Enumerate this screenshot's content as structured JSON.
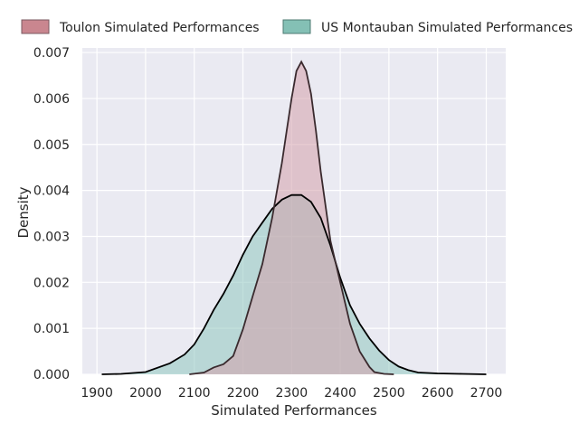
{
  "chart_data": {
    "type": "area",
    "subtype": "kde-density",
    "xlabel": "Simulated Performances",
    "ylabel": "Density",
    "xlim": [
      1870,
      2740
    ],
    "ylim": [
      0,
      0.0071
    ],
    "xticks": [
      1900,
      2000,
      2100,
      2200,
      2300,
      2400,
      2500,
      2600,
      2700
    ],
    "yticks": [
      0,
      0.001,
      0.002,
      0.003,
      0.004,
      0.005,
      0.006,
      0.007
    ],
    "ytick_labels": [
      "0.000",
      "0.001",
      "0.002",
      "0.003",
      "0.004",
      "0.005",
      "0.006",
      "0.007"
    ],
    "grid": true,
    "legend_position": "top",
    "series": [
      {
        "name": "Toulon Simulated Performances",
        "fill": "#d4a0ac",
        "legend_fill": "#c9868f",
        "x": [
          2090,
          2120,
          2140,
          2160,
          2180,
          2200,
          2220,
          2240,
          2260,
          2280,
          2290,
          2300,
          2310,
          2320,
          2330,
          2340,
          2350,
          2360,
          2380,
          2400,
          2420,
          2440,
          2460,
          2470,
          2490,
          2510
        ],
        "y": [
          0,
          4e-05,
          0.00015,
          0.00022,
          0.0004,
          0.00098,
          0.0017,
          0.0024,
          0.0034,
          0.0046,
          0.0053,
          0.006,
          0.0066,
          0.0068,
          0.0066,
          0.0061,
          0.0053,
          0.0044,
          0.0029,
          0.002,
          0.0011,
          0.0005,
          0.00016,
          5e-05,
          1e-05,
          0
        ]
      },
      {
        "name": "US Montauban Simulated Performances",
        "fill": "#8fc7c0",
        "legend_fill": "#84c0b5",
        "x": [
          1910,
          1950,
          2000,
          2050,
          2080,
          2100,
          2120,
          2140,
          2160,
          2180,
          2200,
          2220,
          2240,
          2260,
          2280,
          2300,
          2320,
          2340,
          2360,
          2380,
          2400,
          2420,
          2440,
          2460,
          2480,
          2500,
          2520,
          2540,
          2560,
          2600,
          2650,
          2700
        ],
        "y": [
          0,
          1e-05,
          5e-05,
          0.00024,
          0.00043,
          0.00065,
          0.001,
          0.0014,
          0.00175,
          0.00215,
          0.0026,
          0.003,
          0.0033,
          0.0036,
          0.0038,
          0.0039,
          0.0039,
          0.00375,
          0.0034,
          0.0028,
          0.0021,
          0.0015,
          0.0011,
          0.00078,
          0.00052,
          0.00031,
          0.00017,
          9e-05,
          4e-05,
          2e-05,
          1e-05,
          0
        ]
      }
    ]
  }
}
